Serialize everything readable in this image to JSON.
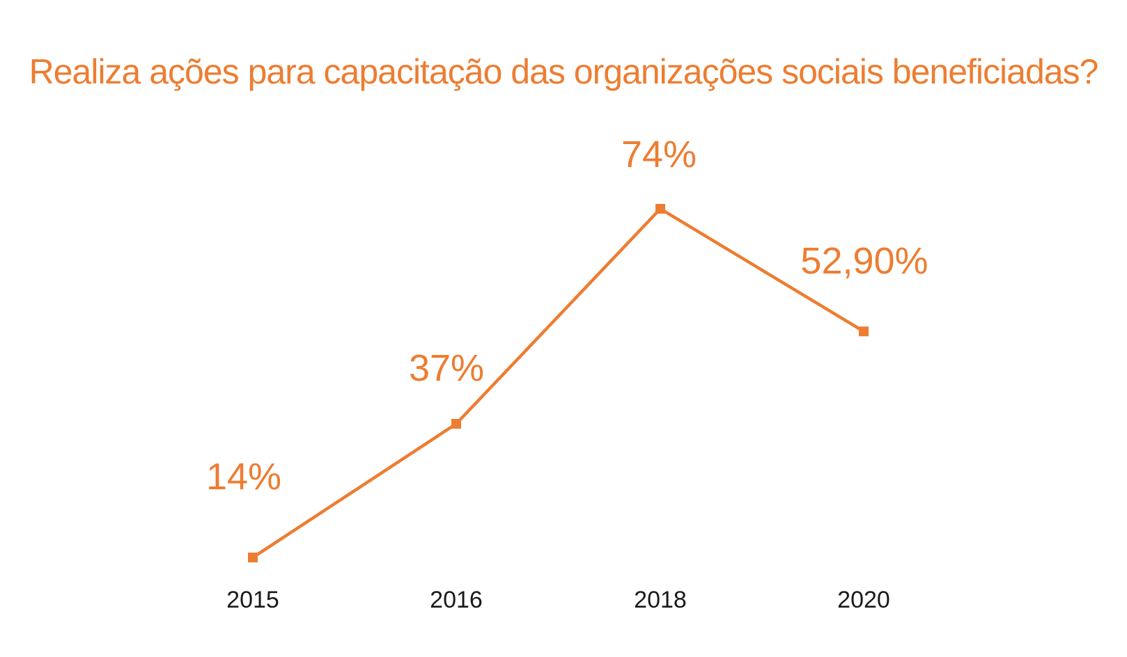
{
  "colors": {
    "accent": "#ed7d31",
    "text": "#1a1a1a",
    "background": "#ffffff"
  },
  "chart_data": {
    "type": "line",
    "title": "Realiza ações para capacitação das organizações sociais beneficiadas?",
    "xlabel": "",
    "ylabel": "",
    "grid": false,
    "legend": "none",
    "categories": [
      "2015",
      "2016",
      "2018",
      "2020"
    ],
    "series": [
      {
        "values": [
          14,
          37,
          74,
          52.9
        ]
      }
    ],
    "data_labels": [
      "14%",
      "37%",
      "74%",
      "52,90%"
    ],
    "ylim": [
      14,
      74
    ]
  }
}
